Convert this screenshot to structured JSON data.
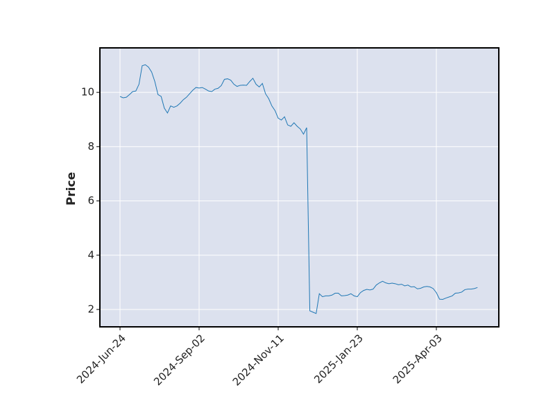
{
  "chart_data": {
    "type": "line",
    "y_label": "Price",
    "color": "#1f77b4",
    "background": "#dce1ee",
    "grid": true,
    "ylim": [
      1.36,
      11.64
    ],
    "yticks": [
      2,
      4,
      6,
      8,
      10
    ],
    "xlim": [
      -6.36,
      119.74
    ],
    "categories": [
      "2024-Jun-24",
      null,
      null,
      null,
      null,
      null,
      null,
      null,
      null,
      null,
      null,
      null,
      null,
      null,
      null,
      null,
      null,
      null,
      null,
      null,
      null,
      null,
      null,
      null,
      null,
      "2024-Sep-02",
      null,
      null,
      null,
      null,
      null,
      null,
      null,
      null,
      null,
      null,
      null,
      null,
      null,
      null,
      null,
      null,
      null,
      null,
      null,
      null,
      null,
      null,
      null,
      null,
      "2024-Nov-11",
      null,
      null,
      null,
      null,
      null,
      null,
      null,
      null,
      null,
      null,
      null,
      null,
      null,
      null,
      null,
      null,
      null,
      null,
      null,
      null,
      null,
      null,
      null,
      null,
      "2025-Jan-23",
      null,
      null,
      null,
      null,
      null,
      null,
      null,
      null,
      null,
      null,
      null,
      null,
      null,
      null,
      null,
      null,
      null,
      null,
      null,
      null,
      null,
      null,
      null,
      null,
      "2025-Apr-03",
      null,
      null,
      null,
      null,
      null,
      null,
      null,
      null,
      null,
      null,
      null,
      null,
      null
    ],
    "values": [
      9.85,
      9.8,
      9.82,
      9.92,
      10.03,
      10.05,
      10.3,
      10.98,
      11.02,
      10.93,
      10.75,
      10.4,
      9.92,
      9.85,
      9.42,
      9.24,
      9.5,
      9.45,
      9.5,
      9.6,
      9.73,
      9.82,
      9.95,
      10.08,
      10.18,
      10.16,
      10.18,
      10.12,
      10.05,
      10.03,
      10.12,
      10.15,
      10.25,
      10.48,
      10.5,
      10.45,
      10.3,
      10.22,
      10.26,
      10.27,
      10.26,
      10.4,
      10.52,
      10.3,
      10.2,
      10.33,
      9.95,
      9.77,
      9.5,
      9.33,
      9.05,
      8.98,
      9.1,
      8.8,
      8.75,
      8.88,
      8.75,
      8.65,
      8.46,
      8.7,
      1.95,
      1.9,
      1.85,
      2.58,
      2.47,
      2.5,
      2.5,
      2.53,
      2.6,
      2.6,
      2.5,
      2.51,
      2.53,
      2.58,
      2.5,
      2.47,
      2.62,
      2.7,
      2.74,
      2.72,
      2.75,
      2.9,
      2.98,
      3.04,
      2.98,
      2.95,
      2.97,
      2.95,
      2.91,
      2.93,
      2.87,
      2.9,
      2.83,
      2.84,
      2.76,
      2.78,
      2.83,
      2.85,
      2.83,
      2.77,
      2.62,
      2.38,
      2.37,
      2.42,
      2.46,
      2.5,
      2.6,
      2.61,
      2.64,
      2.73,
      2.75,
      2.75,
      2.77,
      2.81
    ]
  }
}
